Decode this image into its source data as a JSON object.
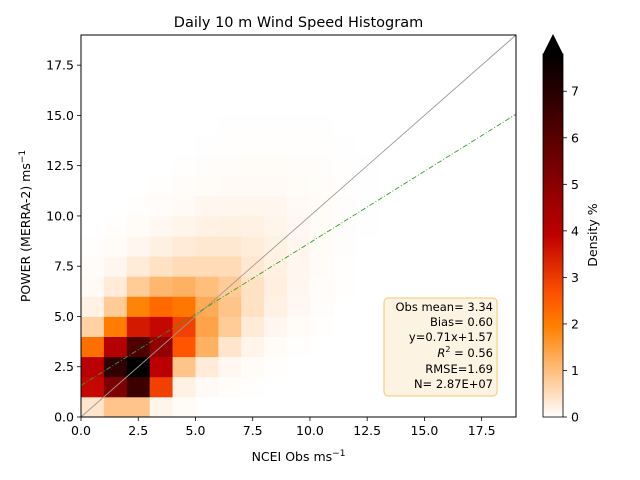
{
  "chart_data": {
    "type": "heatmap",
    "title": "Daily 10 m Wind Speed Histogram",
    "xlabel": "NCEI Obs ms",
    "ylabel": "POWER (MERRA-2) ms",
    "label_unit_exp": "−1",
    "xlim": [
      0,
      19
    ],
    "ylim": [
      0,
      19
    ],
    "xticks": [
      0,
      2.5,
      5,
      7.5,
      10,
      12.5,
      15,
      17.5
    ],
    "yticks": [
      0,
      2.5,
      5,
      7.5,
      10,
      12.5,
      15,
      17.5
    ],
    "bin_size": 1,
    "colorbar": {
      "label": "Density %",
      "min": 0,
      "max": 7.8,
      "ticks": [
        0,
        1,
        2,
        3,
        4,
        5,
        6,
        7
      ],
      "extend": "max"
    },
    "density": [
      [
        0.4,
        0.9,
        0.9,
        0.15,
        0.05,
        0,
        0,
        0,
        0,
        0,
        0,
        0,
        0,
        0,
        0,
        0,
        0,
        0,
        0
      ],
      [
        3.8,
        5.2,
        6.6,
        2.9,
        0.2,
        0.08,
        0.04,
        0.02,
        0,
        0,
        0,
        0,
        0,
        0,
        0,
        0,
        0,
        0,
        0
      ],
      [
        4.0,
        6.8,
        7.8,
        4.0,
        0.9,
        0.3,
        0.1,
        0.05,
        0.02,
        0,
        0,
        0,
        0,
        0,
        0,
        0,
        0,
        0,
        0
      ],
      [
        2.2,
        4.1,
        6.2,
        4.8,
        2.6,
        1.2,
        0.4,
        0.15,
        0.06,
        0.02,
        0,
        0,
        0,
        0,
        0,
        0,
        0,
        0,
        0
      ],
      [
        0.7,
        2.0,
        3.5,
        3.8,
        2.9,
        1.4,
        0.8,
        0.3,
        0.12,
        0.05,
        0.02,
        0,
        0,
        0,
        0,
        0,
        0,
        0,
        0
      ],
      [
        0.2,
        0.8,
        1.9,
        2.3,
        2.1,
        1.3,
        0.9,
        0.45,
        0.2,
        0.1,
        0.03,
        0,
        0,
        0,
        0,
        0,
        0,
        0,
        0
      ],
      [
        0.08,
        0.3,
        0.8,
        1.1,
        1.2,
        1.0,
        0.8,
        0.45,
        0.25,
        0.12,
        0.04,
        0.02,
        0,
        0,
        0,
        0,
        0,
        0,
        0
      ],
      [
        0.04,
        0.12,
        0.3,
        0.45,
        0.55,
        0.55,
        0.55,
        0.35,
        0.22,
        0.12,
        0.06,
        0.02,
        0,
        0,
        0,
        0,
        0,
        0,
        0
      ],
      [
        0.02,
        0.05,
        0.12,
        0.22,
        0.3,
        0.35,
        0.35,
        0.28,
        0.2,
        0.12,
        0.06,
        0.03,
        0,
        0,
        0,
        0,
        0,
        0,
        0
      ],
      [
        0,
        0.02,
        0.05,
        0.1,
        0.15,
        0.2,
        0.22,
        0.2,
        0.15,
        0.1,
        0.06,
        0.03,
        0.01,
        0,
        0,
        0,
        0,
        0,
        0
      ],
      [
        0,
        0,
        0.02,
        0.04,
        0.08,
        0.12,
        0.14,
        0.14,
        0.12,
        0.08,
        0.05,
        0.03,
        0.01,
        0,
        0,
        0,
        0,
        0,
        0
      ],
      [
        0,
        0,
        0,
        0.02,
        0.04,
        0.06,
        0.08,
        0.08,
        0.08,
        0.06,
        0.04,
        0.02,
        0.01,
        0,
        0,
        0,
        0,
        0,
        0
      ],
      [
        0,
        0,
        0,
        0,
        0.02,
        0.03,
        0.04,
        0.05,
        0.05,
        0.04,
        0.03,
        0.02,
        0.01,
        0,
        0,
        0,
        0,
        0,
        0
      ],
      [
        0,
        0,
        0,
        0,
        0,
        0.01,
        0.02,
        0.02,
        0.02,
        0.02,
        0.02,
        0.01,
        0,
        0,
        0,
        0,
        0,
        0,
        0
      ],
      [
        0,
        0,
        0,
        0,
        0,
        0,
        0.01,
        0.01,
        0.01,
        0.01,
        0.01,
        0,
        0,
        0,
        0,
        0,
        0,
        0,
        0
      ],
      [
        0,
        0,
        0,
        0,
        0,
        0,
        0,
        0,
        0,
        0,
        0,
        0,
        0,
        0,
        0,
        0,
        0,
        0,
        0
      ],
      [
        0,
        0,
        0,
        0,
        0,
        0,
        0,
        0,
        0,
        0,
        0,
        0,
        0,
        0,
        0,
        0,
        0,
        0,
        0
      ],
      [
        0,
        0,
        0,
        0,
        0,
        0,
        0,
        0,
        0,
        0,
        0,
        0,
        0,
        0,
        0,
        0,
        0,
        0,
        0
      ],
      [
        0,
        0,
        0,
        0,
        0,
        0,
        0,
        0,
        0,
        0,
        0,
        0,
        0,
        0,
        0,
        0,
        0,
        0,
        0
      ]
    ],
    "one_to_one_line": {
      "slope": 1,
      "intercept": 0,
      "color": "#999999"
    },
    "regression_line": {
      "slope": 0.71,
      "intercept": 1.57,
      "color": "#2ca02c"
    },
    "stats_lines": [
      "Obs mean= 3.34",
      "Bias= 0.60",
      "y=0.71x+1.57",
      "R2 = 0.56",
      "RMSE=1.69",
      "N= 2.87E+07"
    ],
    "stats_box": {
      "background": "#fdf3e3",
      "border": "#f3c76a"
    }
  }
}
